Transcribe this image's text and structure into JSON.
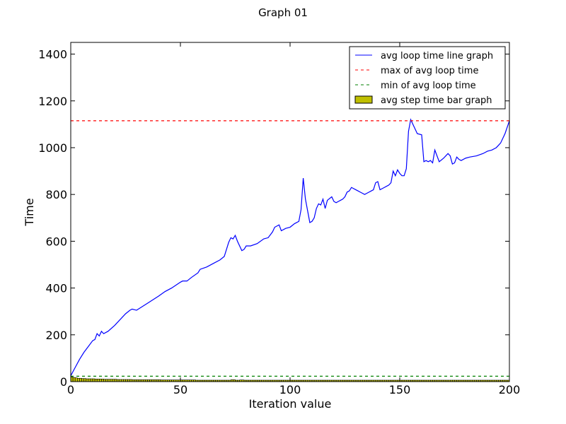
{
  "chart_data": {
    "type": "line",
    "title": "Graph 01",
    "xlabel": "Iteration value",
    "ylabel": "Time",
    "xlim": [
      0,
      200
    ],
    "ylim": [
      0,
      1450
    ],
    "xticks": [
      0,
      50,
      100,
      150,
      200
    ],
    "yticks": [
      0,
      200,
      400,
      600,
      800,
      1000,
      1200,
      1400
    ],
    "grid": false,
    "legend_position": "top-right",
    "series": [
      {
        "name": "avg loop time line graph",
        "style": "solid",
        "color": "#0000ff",
        "x": [
          0,
          2,
          4,
          6,
          8,
          10,
          11,
          12,
          13,
          14,
          15,
          17,
          20,
          25,
          27,
          28,
          30,
          35,
          40,
          43,
          46,
          50,
          51,
          53,
          55,
          58,
          59,
          62,
          65,
          68,
          70,
          72,
          73,
          74,
          75,
          76,
          78,
          79,
          80,
          82,
          85,
          88,
          90,
          92,
          93,
          94,
          95,
          96,
          98,
          100,
          102,
          104,
          105,
          106,
          107,
          109,
          110,
          111,
          112,
          113,
          114,
          115,
          116,
          117,
          119,
          120,
          121,
          122,
          123,
          124,
          125,
          126,
          127,
          128,
          130,
          131,
          132,
          133,
          134,
          135,
          136,
          137,
          138,
          139,
          140,
          141,
          143,
          144,
          145,
          146,
          147,
          148,
          149,
          150,
          151,
          152,
          153,
          154,
          155,
          156,
          158,
          160,
          161,
          162,
          163,
          164,
          165,
          166,
          168,
          170,
          171,
          172,
          173,
          174,
          175,
          176,
          177,
          178,
          180,
          182,
          185,
          188,
          190,
          192,
          194,
          195,
          196,
          198,
          200
        ],
        "y": [
          25,
          60,
          95,
          125,
          150,
          175,
          180,
          205,
          195,
          215,
          205,
          215,
          240,
          290,
          305,
          310,
          305,
          335,
          365,
          385,
          400,
          425,
          430,
          430,
          445,
          465,
          480,
          490,
          505,
          520,
          535,
          595,
          615,
          610,
          625,
          600,
          560,
          565,
          580,
          580,
          590,
          610,
          615,
          640,
          660,
          665,
          670,
          645,
          655,
          660,
          675,
          685,
          735,
          870,
          780,
          680,
          685,
          700,
          740,
          760,
          755,
          780,
          740,
          775,
          790,
          770,
          765,
          770,
          775,
          780,
          790,
          810,
          815,
          830,
          820,
          815,
          810,
          805,
          800,
          805,
          810,
          815,
          820,
          850,
          855,
          820,
          830,
          835,
          840,
          850,
          900,
          880,
          905,
          890,
          880,
          880,
          910,
          1070,
          1120,
          1100,
          1060,
          1055,
          940,
          945,
          940,
          945,
          935,
          990,
          940,
          955,
          965,
          975,
          965,
          930,
          935,
          960,
          950,
          945,
          955,
          960,
          965,
          975,
          985,
          990,
          1000,
          1010,
          1020,
          1060,
          1115
        ]
      },
      {
        "name": "max of avg loop time",
        "style": "dashed",
        "color": "#ff0000",
        "x": [
          0,
          200
        ],
        "y": [
          1115,
          1115
        ]
      },
      {
        "name": "min of avg loop time",
        "style": "dashed",
        "color": "#008000",
        "x": [
          0,
          200
        ],
        "y": [
          23,
          23
        ]
      }
    ],
    "bars": {
      "name": "avg step time bar graph",
      "color": "#bfbf00",
      "width": 1,
      "values": [
        20,
        18,
        16,
        14,
        14,
        13,
        13,
        12,
        12,
        12,
        12,
        11,
        11,
        11,
        11,
        10,
        10,
        10,
        10,
        10,
        10,
        9,
        9,
        9,
        9,
        9,
        9,
        9,
        8,
        8,
        8,
        8,
        8,
        8,
        8,
        8,
        8,
        8,
        8,
        8,
        8,
        7,
        7,
        7,
        7,
        7,
        7,
        7,
        7,
        7,
        7,
        7,
        7,
        7,
        7,
        7,
        7,
        6,
        6,
        6,
        6,
        6,
        6,
        6,
        6,
        6,
        6,
        6,
        6,
        6,
        6,
        6,
        6,
        8,
        8,
        6,
        6,
        7,
        7,
        6,
        6,
        6,
        6,
        6,
        6,
        6,
        6,
        6,
        6,
        6,
        6,
        6,
        6,
        6,
        6,
        6,
        6,
        6,
        6,
        6,
        6,
        6,
        6,
        6,
        6,
        6,
        6,
        6,
        6,
        6,
        6,
        6,
        6,
        6,
        6,
        6,
        6,
        6,
        6,
        6,
        6,
        6,
        6,
        6,
        6,
        6,
        6,
        6,
        6,
        6,
        6,
        6,
        6,
        6,
        6,
        6,
        6,
        6,
        6,
        6,
        6,
        6,
        6,
        6,
        6,
        6,
        6,
        6,
        6,
        6,
        6,
        6,
        6,
        6,
        6,
        6,
        6,
        6,
        6,
        6,
        6,
        6,
        6,
        6,
        6,
        6,
        6,
        6,
        6,
        6,
        6,
        6,
        6,
        6,
        6,
        6,
        6,
        6,
        6,
        6,
        6,
        6,
        6,
        6,
        6,
        6,
        6,
        6,
        6,
        6,
        6,
        6,
        6,
        6,
        6,
        6,
        6,
        6,
        6,
        6
      ]
    }
  }
}
